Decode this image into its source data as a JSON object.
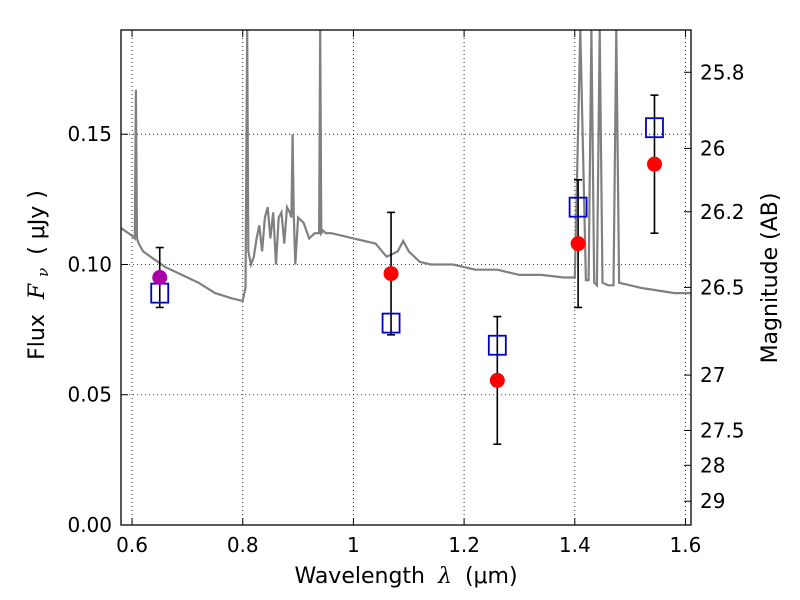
{
  "chart_data": {
    "type": "scatter",
    "xlabel_text": "Wavelength",
    "xlabel_symbol": "λ",
    "xlabel_unit": "(μm)",
    "ylabel_text": "Flux",
    "ylabel_symbol": "F",
    "ylabel_sub": "ν",
    "ylabel_unit": "( μJy )",
    "y2label": "Magnitude (AB)",
    "xlim": [
      0.58,
      1.61
    ],
    "ylim": [
      0.0,
      0.19
    ],
    "x_ticks": [
      {
        "value": 0.6,
        "label": "0.6"
      },
      {
        "value": 0.8,
        "label": "0.8"
      },
      {
        "value": 1.0,
        "label": "1"
      },
      {
        "value": 1.2,
        "label": "1.2"
      },
      {
        "value": 1.4,
        "label": "1.4"
      },
      {
        "value": 1.6,
        "label": "1.6"
      }
    ],
    "y_ticks": [
      {
        "value": 0.0,
        "label": "0.00"
      },
      {
        "value": 0.05,
        "label": "0.05"
      },
      {
        "value": 0.1,
        "label": "0.10"
      },
      {
        "value": 0.15,
        "label": "0.15"
      }
    ],
    "mag_ticks": [
      {
        "value": 25.8,
        "label": "25.8"
      },
      {
        "value": 26.0,
        "label": "26"
      },
      {
        "value": 26.2,
        "label": "26.2"
      },
      {
        "value": 26.5,
        "label": "26.5"
      },
      {
        "value": 27.0,
        "label": "27"
      },
      {
        "value": 27.5,
        "label": "27.5"
      },
      {
        "value": 28.0,
        "label": "28"
      },
      {
        "value": 29.0,
        "label": "29"
      }
    ],
    "grid": true,
    "colors": {
      "model": "#808080",
      "observed": "#ff0000",
      "observed_first": "#aa00aa",
      "model_box": "#0000cc",
      "errorbar": "#000000"
    },
    "series": [
      {
        "name": "observed",
        "points": [
          {
            "x": 0.65,
            "y": 0.095,
            "yerr": 0.0115
          },
          {
            "x": 1.068,
            "y": 0.0965,
            "yerr": 0.0235
          },
          {
            "x": 1.26,
            "y": 0.0555,
            "yerr": 0.0245
          },
          {
            "x": 1.406,
            "y": 0.108,
            "yerr": 0.0245
          },
          {
            "x": 1.544,
            "y": 0.1385,
            "yerr": 0.0265
          }
        ]
      },
      {
        "name": "model_photometry",
        "points": [
          {
            "x": 0.65,
            "y": 0.089
          },
          {
            "x": 1.068,
            "y": 0.0775
          },
          {
            "x": 1.26,
            "y": 0.069
          },
          {
            "x": 1.406,
            "y": 0.122
          },
          {
            "x": 1.544,
            "y": 0.1525
          }
        ]
      },
      {
        "name": "model_spectrum",
        "x": [
          0.58,
          0.6,
          0.605,
          0.607,
          0.609,
          0.612,
          0.62,
          0.64,
          0.66,
          0.69,
          0.72,
          0.75,
          0.78,
          0.8,
          0.805,
          0.808,
          0.81,
          0.815,
          0.82,
          0.825,
          0.83,
          0.835,
          0.84,
          0.845,
          0.85,
          0.855,
          0.86,
          0.865,
          0.87,
          0.875,
          0.88,
          0.885,
          0.888,
          0.89,
          0.892,
          0.895,
          0.9,
          0.91,
          0.92,
          0.93,
          0.938,
          0.94,
          0.942,
          0.945,
          0.95,
          0.96,
          0.98,
          1.0,
          1.02,
          1.04,
          1.06,
          1.07,
          1.08,
          1.09,
          1.1,
          1.12,
          1.14,
          1.16,
          1.18,
          1.2,
          1.22,
          1.26,
          1.3,
          1.34,
          1.38,
          1.4,
          1.41,
          1.42,
          1.425,
          1.43,
          1.435,
          1.44,
          1.445,
          1.45,
          1.46,
          1.47,
          1.475,
          1.48,
          1.5,
          1.52,
          1.55,
          1.58,
          1.61
        ],
        "y": [
          0.114,
          0.111,
          0.11,
          0.167,
          0.11,
          0.108,
          0.105,
          0.102,
          0.099,
          0.096,
          0.093,
          0.089,
          0.087,
          0.086,
          0.091,
          0.19,
          0.105,
          0.1,
          0.103,
          0.11,
          0.115,
          0.105,
          0.118,
          0.122,
          0.11,
          0.12,
          0.1,
          0.118,
          0.12,
          0.108,
          0.122,
          0.12,
          0.118,
          0.15,
          0.12,
          0.1,
          0.118,
          0.116,
          0.11,
          0.112,
          0.112,
          0.19,
          0.112,
          0.113,
          0.112,
          0.112,
          0.111,
          0.11,
          0.109,
          0.108,
          0.103,
          0.104,
          0.105,
          0.109,
          0.105,
          0.101,
          0.1,
          0.1,
          0.1,
          0.099,
          0.098,
          0.098,
          0.096,
          0.096,
          0.095,
          0.095,
          0.19,
          0.094,
          0.094,
          0.19,
          0.093,
          0.092,
          0.19,
          0.093,
          0.092,
          0.092,
          0.19,
          0.093,
          0.092,
          0.091,
          0.09,
          0.089,
          0.089
        ]
      }
    ]
  }
}
